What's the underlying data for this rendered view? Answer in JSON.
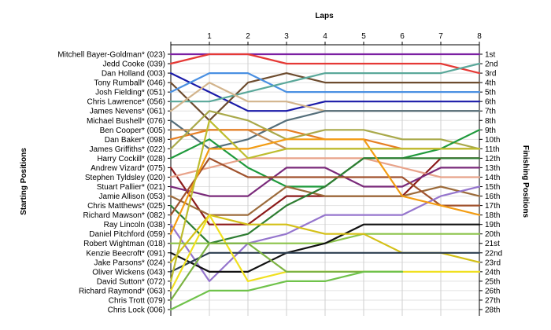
{
  "chart_data": {
    "type": "line",
    "title": "Laps",
    "xlabel": "Laps",
    "ylabel_left": "Starting Positions",
    "ylabel_right": "Finishing Positions",
    "laps": [
      0,
      1,
      2,
      3,
      4,
      5,
      6,
      7,
      8
    ],
    "lap_tick_labels": [
      "1",
      "2",
      "3",
      "4",
      "5",
      "6",
      "7",
      "8"
    ],
    "start_labels": [
      "Mitchell Bayer-Goldman* (023)",
      "Jedd Cooke (039)",
      "Dan Holland (003)",
      "Tony Rumball* (046)",
      "Josh Fielding* (051)",
      "Chris Lawrence* (056)",
      "James Nevens* (061)",
      "Michael Bushell* (076)",
      "Ben Cooper* (005)",
      "Dan Baker* (098)",
      "James Griffiths* (022)",
      "Harry Cockill* (028)",
      "Andrew Vizard* (075)",
      "Stephen Tyldsley (020)",
      "Stuart Pallier* (021)",
      "Jamie Allison (053)",
      "Chris Matthews* (025)",
      "Richard Mawson* (082)",
      "Ray Lincoln (038)",
      "Daniel Pitchford (059)",
      "Robert Wightman (018)",
      "Kenzie Beecroft* (091)",
      "Jake Parsons* (024)",
      "Oliver Wickens (043)",
      "David Sutton* (072)",
      "Richard Raymond* (063)",
      "Chris Trott (079)",
      "Chris Lock (006)"
    ],
    "finish_labels": [
      "1st",
      "2nd",
      "3rd",
      "4th",
      "5th",
      "6th",
      "7th",
      "8th",
      "9th",
      "10th",
      "11th",
      "12th",
      "13th",
      "14th",
      "15th",
      "16th",
      "17th",
      "18th",
      "19th",
      "20th",
      "21st",
      "22nd",
      "23rd",
      "24th",
      "25th",
      "26th",
      "27th",
      "28th"
    ],
    "y_range": [
      1,
      28
    ],
    "grid": true,
    "series": [
      {
        "color": "#7b1fa2",
        "positions": [
          1,
          1,
          1,
          1,
          1,
          1,
          1,
          1,
          1
        ]
      },
      {
        "color": "#e53935",
        "positions": [
          2,
          1,
          1,
          2,
          2,
          2,
          2,
          2,
          3
        ]
      },
      {
        "color": "#1a1aa8",
        "positions": [
          3,
          5,
          7,
          7,
          6,
          6,
          6,
          6,
          6
        ]
      },
      {
        "color": "#6d4c2f",
        "positions": [
          4,
          8,
          4,
          3,
          4,
          4,
          4,
          4,
          4
        ]
      },
      {
        "color": "#4a90e2",
        "positions": [
          5,
          3,
          3,
          5,
          5,
          5,
          5,
          5,
          5
        ]
      },
      {
        "color": "#5aa89a",
        "positions": [
          6,
          6,
          5,
          4,
          3,
          3,
          3,
          3,
          2
        ]
      },
      {
        "color": "#d2b48c",
        "positions": [
          7,
          4,
          6,
          6,
          7,
          7,
          7,
          7,
          7
        ]
      },
      {
        "color": "#546e7a",
        "positions": [
          8,
          11,
          10,
          8,
          7,
          7,
          7,
          7,
          7
        ]
      },
      {
        "color": "#c68c53",
        "positions": [
          9,
          9,
          9,
          11,
          11,
          11,
          11,
          11,
          11
        ]
      },
      {
        "color": "#e67e22",
        "positions": [
          10,
          9,
          9,
          9,
          10,
          10,
          11,
          11,
          11
        ]
      },
      {
        "color": "#a9a94a",
        "positions": [
          11,
          7,
          8,
          10,
          9,
          9,
          10,
          10,
          11
        ]
      },
      {
        "color": "#1f9a3c",
        "positions": [
          12,
          10,
          13,
          15,
          15,
          12,
          12,
          11,
          9
        ]
      },
      {
        "color": "#8b1a1a",
        "positions": [
          13,
          19,
          19,
          16,
          16,
          16,
          16,
          12,
          12
        ]
      },
      {
        "color": "#e8a38a",
        "positions": [
          14,
          13,
          12,
          12,
          12,
          12,
          13,
          14,
          14
        ]
      },
      {
        "color": "#7a2a7a",
        "positions": [
          15,
          16,
          16,
          13,
          13,
          15,
          15,
          13,
          13
        ]
      },
      {
        "color": "#9c6b3b",
        "positions": [
          16,
          18,
          18,
          15,
          16,
          16,
          16,
          15,
          16
        ]
      },
      {
        "color": "#2e7d32",
        "positions": [
          17,
          21,
          20,
          17,
          15,
          12,
          12,
          12,
          12
        ]
      },
      {
        "color": "#a0522d",
        "positions": [
          18,
          12,
          14,
          14,
          14,
          14,
          14,
          17,
          17
        ]
      },
      {
        "color": "#9575cd",
        "positions": [
          19,
          25,
          21,
          20,
          18,
          18,
          18,
          16,
          15
        ]
      },
      {
        "color": "#f39c12",
        "positions": [
          20,
          11,
          11,
          10,
          10,
          10,
          16,
          17,
          18
        ]
      },
      {
        "color": "#8bc34a",
        "positions": [
          21,
          21,
          21,
          21,
          21,
          20,
          20,
          20,
          20
        ]
      },
      {
        "color": "#111111",
        "positions": [
          22,
          24,
          24,
          22,
          21,
          19,
          19,
          19,
          19
        ]
      },
      {
        "color": "#d4c017",
        "positions": [
          23,
          18,
          19,
          19,
          20,
          20,
          22,
          22,
          23
        ]
      },
      {
        "color": "#2c3e50",
        "positions": [
          24,
          22,
          22,
          22,
          22,
          22,
          22,
          22,
          22
        ]
      },
      {
        "color": "#bdbd2e",
        "positions": [
          25,
          8,
          12,
          11,
          11,
          11,
          11,
          11,
          11
        ]
      },
      {
        "color": "#f0e020",
        "positions": [
          26,
          18,
          25,
          24,
          24,
          24,
          24,
          24,
          24
        ]
      },
      {
        "color": "#7cb342",
        "positions": [
          27,
          21,
          21,
          24,
          24,
          24,
          24,
          null,
          null
        ]
      },
      {
        "color": "#6fc24a",
        "positions": [
          28,
          26,
          26,
          25,
          25,
          24,
          24,
          null,
          null
        ]
      }
    ]
  }
}
